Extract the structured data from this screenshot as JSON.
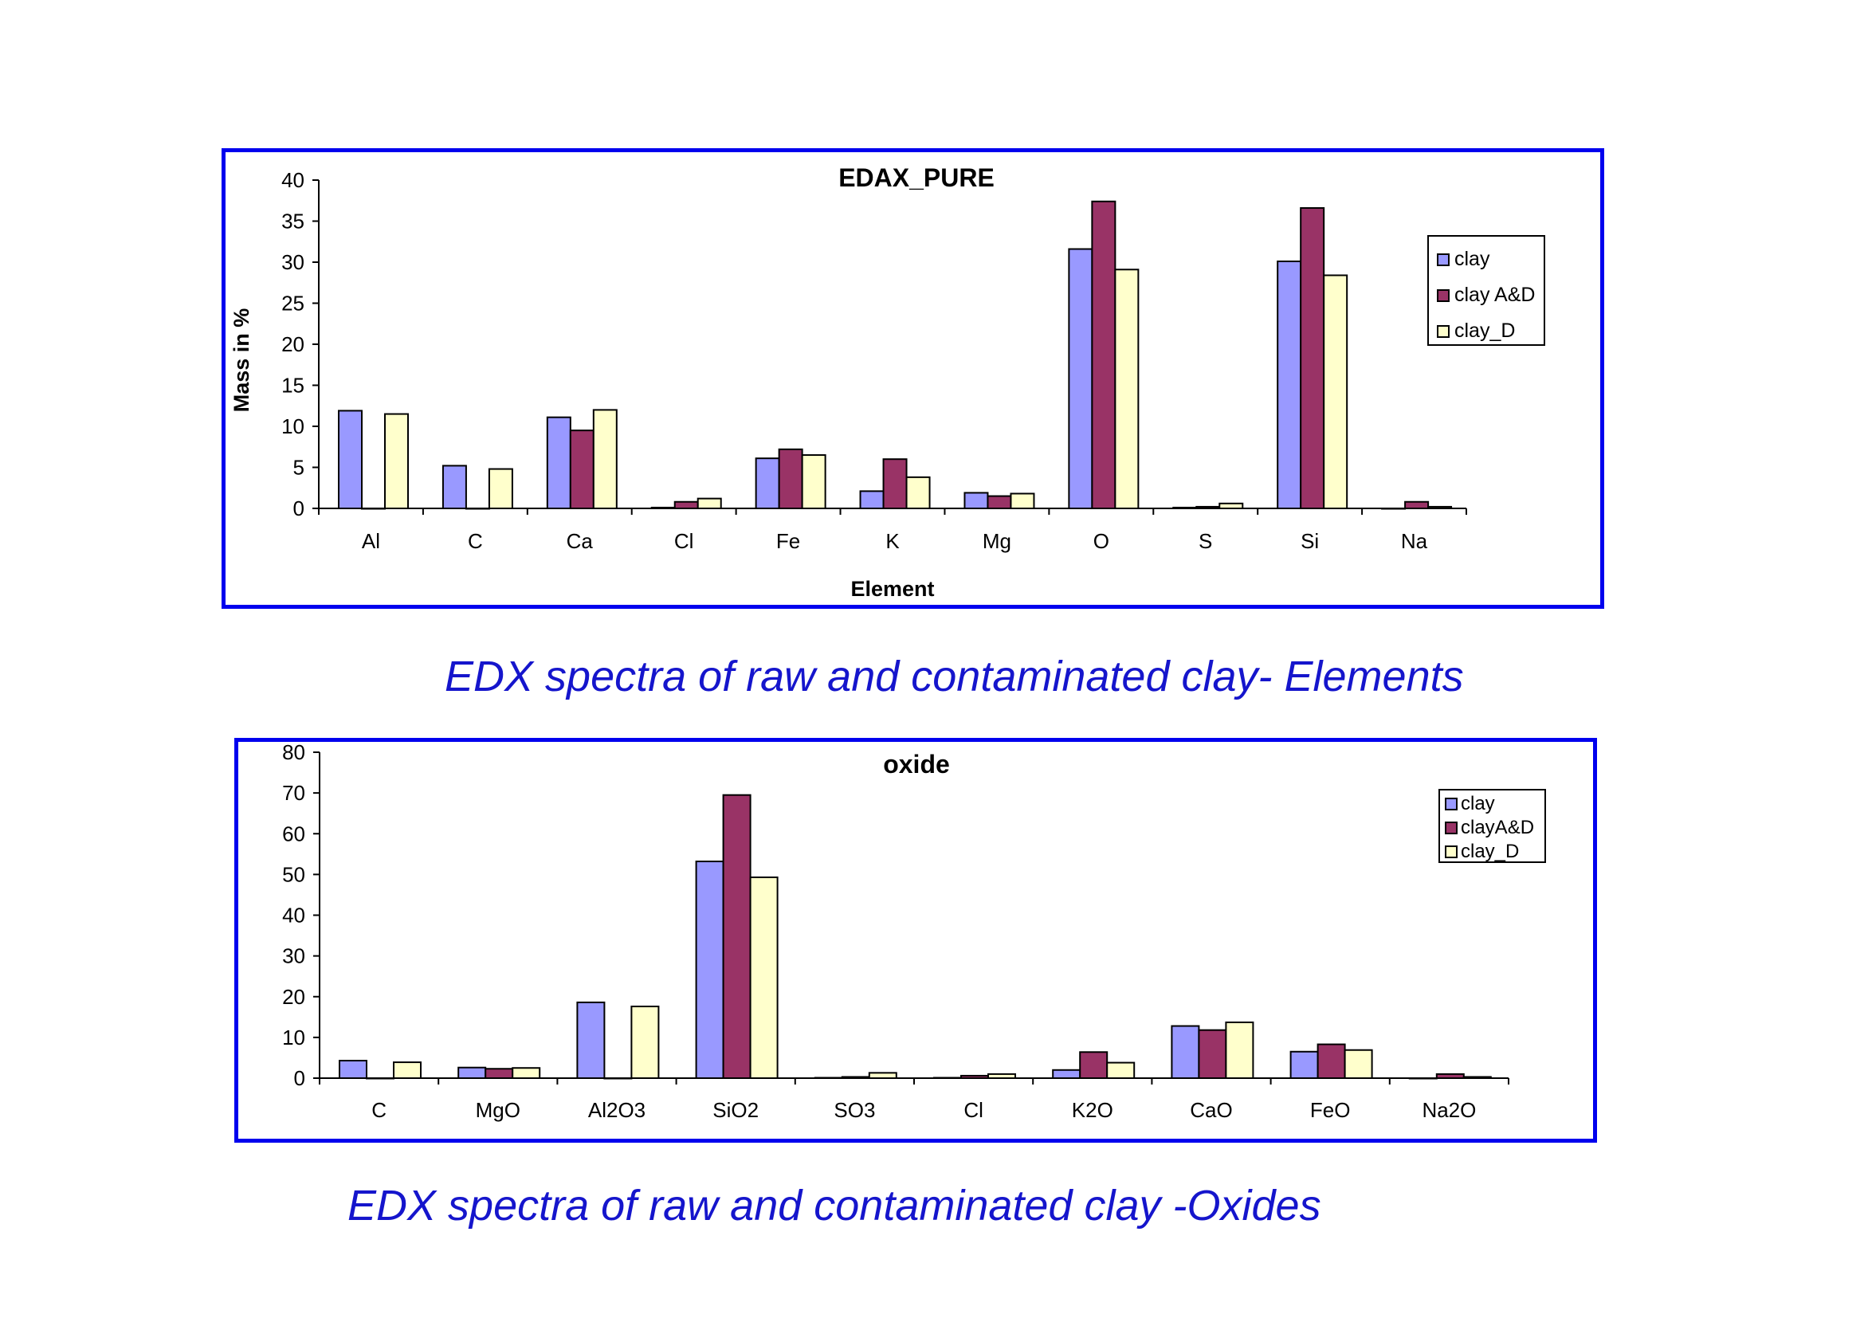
{
  "colors": {
    "frame_border": "#0000ee",
    "caption": "#1515cc",
    "series": [
      "#9999ff",
      "#993366",
      "#ffffcc"
    ]
  },
  "captions": {
    "elements": "EDX spectra of raw and contaminated clay- Elements",
    "oxides": "EDX spectra of  raw and contaminated clay -Oxides"
  },
  "chart_data": [
    {
      "type": "bar",
      "title": "EDAX_PURE",
      "xlabel": "Element",
      "ylabel": "Mass in %",
      "ylim": [
        0,
        40
      ],
      "yticks": [
        0,
        5,
        10,
        15,
        20,
        25,
        30,
        35,
        40
      ],
      "legend_position": "top-right",
      "grid": false,
      "categories": [
        "Al",
        "C",
        "Ca",
        "Cl",
        "Fe",
        "K",
        "Mg",
        "O",
        "S",
        "Si",
        "Na"
      ],
      "series": [
        {
          "name": "clay",
          "values": [
            11.9,
            5.2,
            11.1,
            0.1,
            6.1,
            2.1,
            1.9,
            31.6,
            0.1,
            30.1,
            0
          ]
        },
        {
          "name": "clay A&D",
          "values": [
            0,
            0,
            9.5,
            0.8,
            7.2,
            6.0,
            1.5,
            37.4,
            0.2,
            36.6,
            0.8
          ]
        },
        {
          "name": "clay_D",
          "values": [
            11.5,
            4.8,
            12.0,
            1.2,
            6.5,
            3.8,
            1.8,
            29.1,
            0.6,
            28.4,
            0.2
          ]
        }
      ]
    },
    {
      "type": "bar",
      "title": "oxide",
      "xlabel": "",
      "ylabel": "",
      "ylim": [
        0,
        80
      ],
      "yticks": [
        0,
        10,
        20,
        30,
        40,
        50,
        60,
        70,
        80
      ],
      "legend_position": "top-right",
      "grid": false,
      "categories": [
        "C",
        "MgO",
        "Al2O3",
        "SiO2",
        "SO3",
        "Cl",
        "K2O",
        "CaO",
        "FeO",
        "Na2O"
      ],
      "series": [
        {
          "name": "clay",
          "values": [
            4.3,
            2.6,
            18.6,
            53.2,
            0.1,
            0.1,
            2.0,
            12.8,
            6.5,
            0
          ]
        },
        {
          "name": "clayA&D",
          "values": [
            0,
            2.3,
            0,
            69.5,
            0.3,
            0.6,
            6.4,
            11.8,
            8.3,
            1.0
          ]
        },
        {
          "name": "clay_D",
          "values": [
            3.9,
            2.5,
            17.6,
            49.3,
            1.3,
            1.0,
            3.8,
            13.7,
            6.9,
            0.3
          ]
        }
      ]
    }
  ]
}
